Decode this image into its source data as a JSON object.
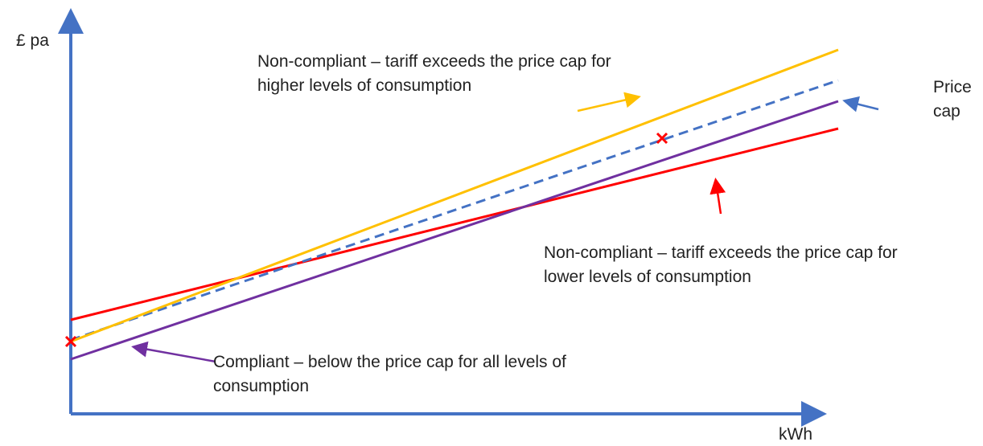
{
  "y_axis_label": "£ pa",
  "x_axis_label": "kWh",
  "price_cap_label": "Price cap",
  "annotations": {
    "higher": "Non-compliant – tariff exceeds the price cap for higher levels of consumption",
    "lower": "Non-compliant – tariff exceeds the price cap for lower levels of consumption",
    "compliant": "Compliant – below the price cap for all levels of consumption"
  }
}
